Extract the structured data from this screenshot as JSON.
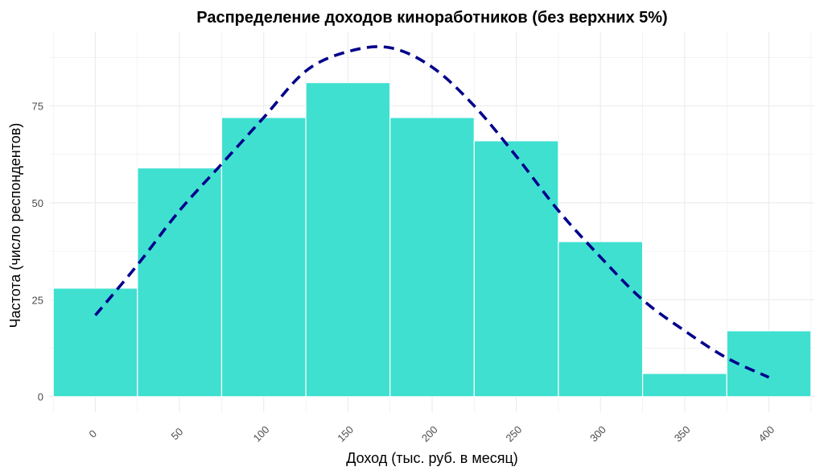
{
  "chart_data": {
    "type": "bar",
    "title": "Распределение доходов киноработников (без верхних 5%)",
    "xlabel": "Доход (тыс. руб. в месяц)",
    "ylabel": "Частота (число респондентов)",
    "bin_width": 50,
    "x_ticks": [
      0,
      50,
      100,
      150,
      200,
      250,
      300,
      350,
      400
    ],
    "y_ticks": [
      0,
      25,
      50,
      75
    ],
    "xlim": [
      -27,
      427
    ],
    "ylim": [
      -4,
      94
    ],
    "grid": true,
    "bins": [
      {
        "center": 0,
        "count": 28
      },
      {
        "center": 50,
        "count": 59
      },
      {
        "center": 100,
        "count": 72
      },
      {
        "center": 150,
        "count": 81
      },
      {
        "center": 200,
        "count": 72
      },
      {
        "center": 250,
        "count": 66
      },
      {
        "center": 300,
        "count": 40
      },
      {
        "center": 350,
        "count": 6
      },
      {
        "center": 400,
        "count": 17
      }
    ],
    "density_curve": {
      "style": "dashed",
      "x": [
        0,
        25,
        50,
        75,
        100,
        125,
        150,
        175,
        200,
        225,
        250,
        275,
        300,
        325,
        350,
        375,
        400
      ],
      "y": [
        21,
        34,
        48,
        60,
        72,
        84,
        89,
        90,
        85,
        75,
        62,
        48,
        36,
        25,
        17,
        10,
        5
      ]
    },
    "colors": {
      "bar_fill": "#40E0D0",
      "bar_outline": "#ffffff",
      "curve": "#00008B",
      "grid": "#ebebeb"
    }
  }
}
